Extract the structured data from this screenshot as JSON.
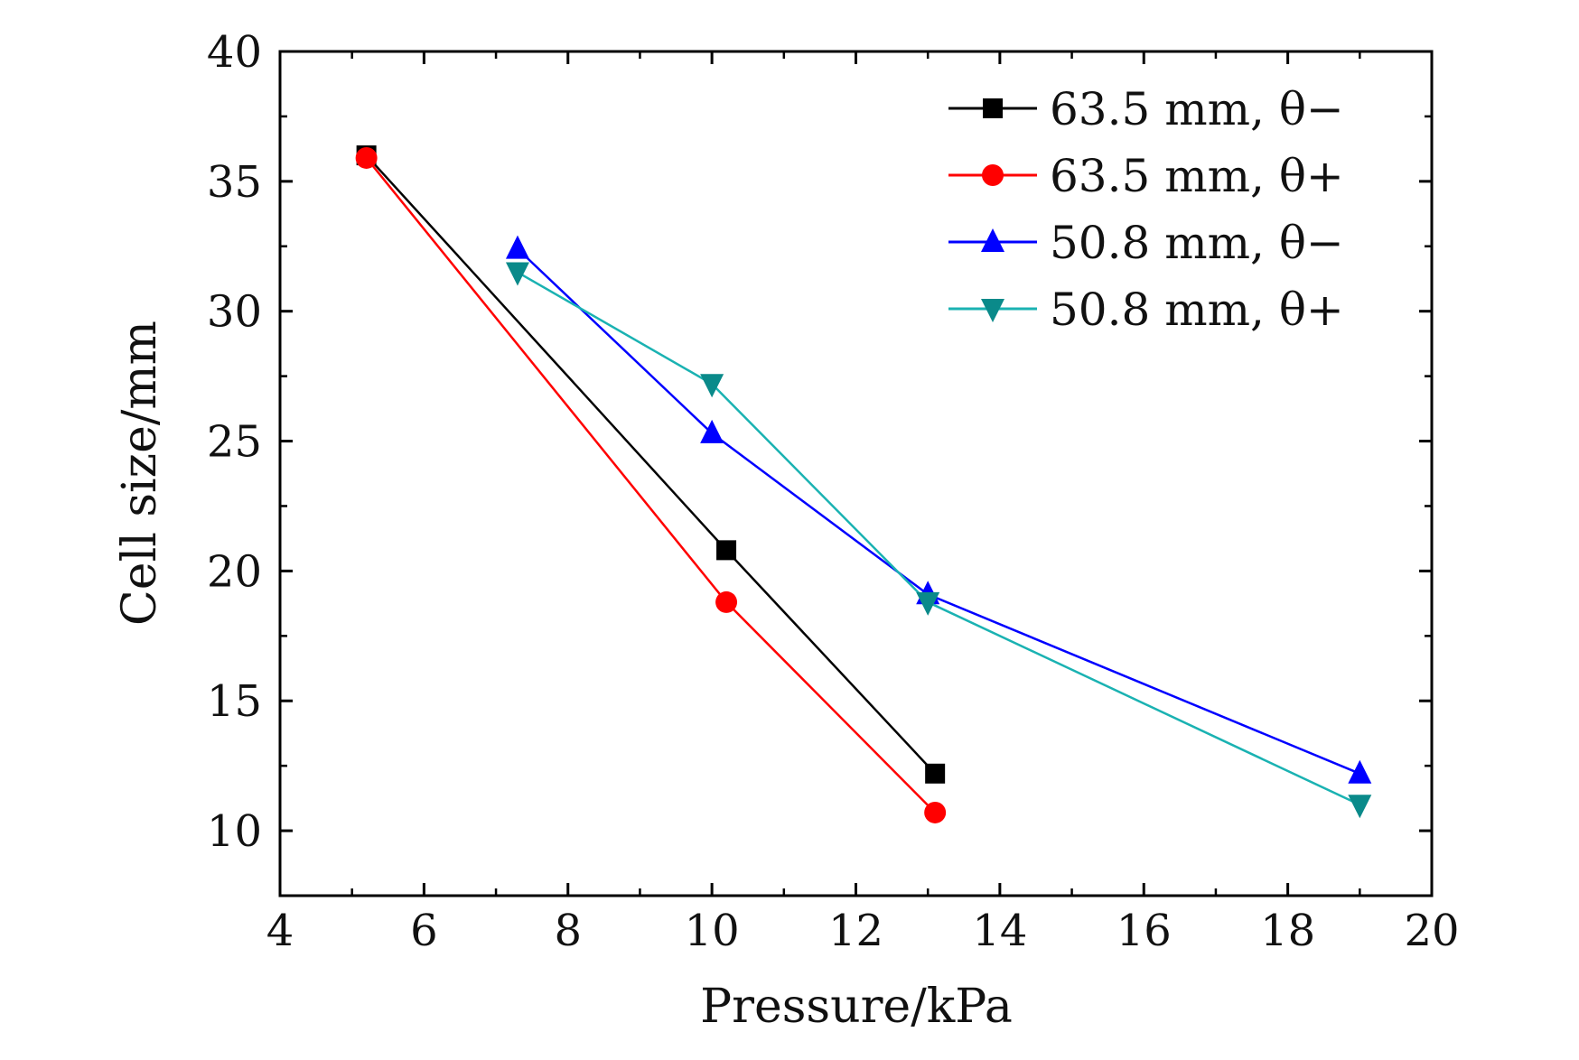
{
  "chart_data": {
    "type": "line",
    "title": "",
    "xlabel": "Pressure/kPa",
    "ylabel": "Cell size/mm",
    "xlim": [
      4,
      20
    ],
    "ylim": [
      7.5,
      40
    ],
    "xticks": [
      4,
      6,
      8,
      10,
      12,
      14,
      16,
      18,
      20
    ],
    "yticks": [
      10,
      15,
      20,
      25,
      30,
      35,
      40
    ],
    "grid": false,
    "legend_position": "top-right",
    "series": [
      {
        "name": "63.5 mm, θ−",
        "color": "#000000",
        "marker": "square",
        "points": [
          [
            5.2,
            36.0
          ],
          [
            10.2,
            20.8
          ],
          [
            13.1,
            12.2
          ]
        ]
      },
      {
        "name": "63.5 mm, θ+",
        "color": "#ff0000",
        "marker": "circle",
        "points": [
          [
            5.2,
            35.9
          ],
          [
            10.2,
            18.8
          ],
          [
            13.1,
            10.7
          ]
        ]
      },
      {
        "name": "50.8 mm, θ−",
        "color": "#0000ff",
        "marker": "triangle-up",
        "points": [
          [
            7.3,
            32.4
          ],
          [
            10.0,
            25.3
          ],
          [
            13.0,
            19.1
          ],
          [
            19.0,
            12.2
          ]
        ]
      },
      {
        "name": "50.8 mm, θ+",
        "color": "#1ab2b2",
        "marker_color": "#0a8a8a",
        "marker": "triangle-down",
        "points": [
          [
            7.3,
            31.5
          ],
          [
            10.0,
            27.2
          ],
          [
            13.0,
            18.8
          ],
          [
            19.0,
            11.0
          ]
        ]
      }
    ]
  }
}
